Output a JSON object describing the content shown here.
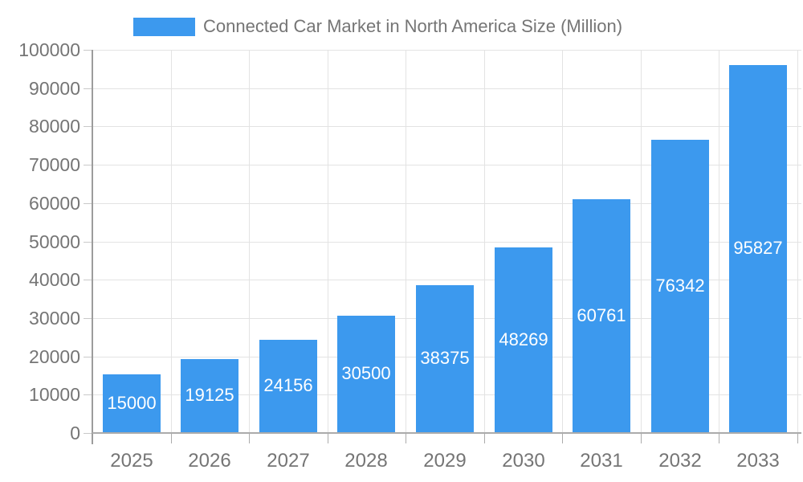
{
  "chart_data": {
    "type": "bar",
    "title": "Connected Car Market in North America Size (Million)",
    "categories": [
      "2025",
      "2026",
      "2027",
      "2028",
      "2029",
      "2030",
      "2031",
      "2032",
      "2033"
    ],
    "values": [
      15000,
      19125,
      24156,
      30500,
      38375,
      48269,
      60761,
      76342,
      95827
    ],
    "xlabel": "",
    "ylabel": "",
    "ylim": [
      0,
      100000
    ],
    "y_ticks": [
      0,
      10000,
      20000,
      30000,
      40000,
      50000,
      60000,
      70000,
      80000,
      90000,
      100000
    ],
    "legend_position": "top",
    "grid": "horizontal lines at y ticks, vertical lines at category boundaries",
    "value_label_style": "white, centered inside each bar",
    "colors": {
      "bar": "#3C99EE",
      "text": "#757575",
      "value_label_text": "#FFFFFF",
      "gridline": "#E3E3E3",
      "axis_line": "#9C9C9C",
      "baseline": "#ABABAB",
      "tick": "#C9C9C9",
      "background": "#FFFFFF"
    }
  }
}
